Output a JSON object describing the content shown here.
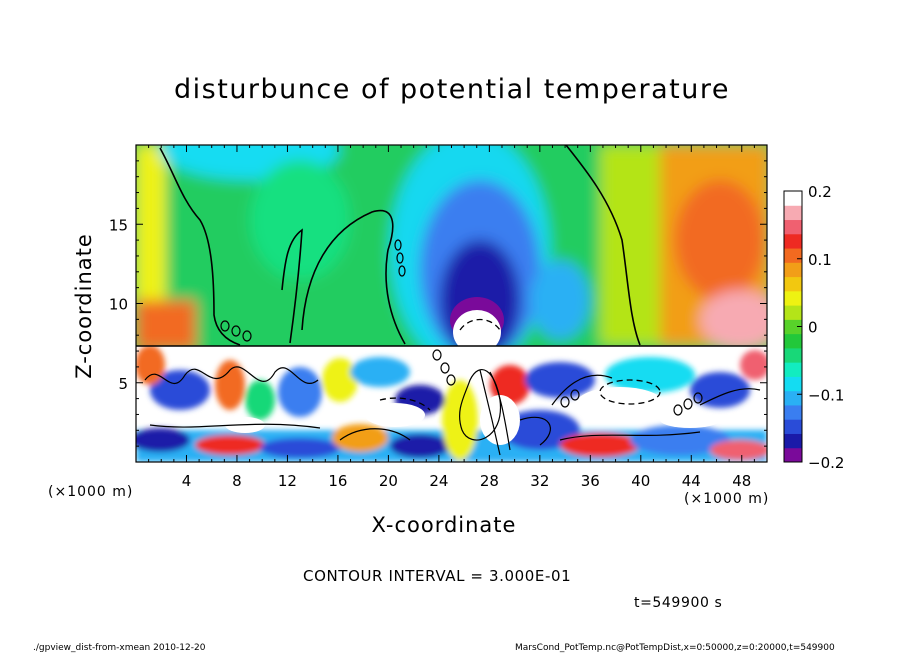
{
  "chart_data": {
    "type": "heatmap",
    "title": "disturbunce of potential temperature",
    "xlabel": "X-coordinate",
    "ylabel": "Z-coordinate",
    "x_unit": "(×1000 m)",
    "x_unit_right": "(×1000 m)",
    "x_ticks": [
      4,
      8,
      12,
      16,
      20,
      24,
      28,
      32,
      36,
      40,
      44,
      48
    ],
    "y_ticks": [
      5,
      10,
      15
    ],
    "xlim": [
      0,
      50
    ],
    "ylim": [
      0,
      20
    ],
    "colorbar": {
      "ticks": [
        0.2,
        0.1,
        0,
        -0.1,
        -0.2
      ],
      "tick_labels": [
        "0.2",
        "0.1",
        "0",
        "−0.1",
        "−0.2"
      ],
      "range": [
        -0.2,
        0.2
      ],
      "colors": [
        "#7a0a9a",
        "#1a1aa8",
        "#2a4cd8",
        "#3a7ef0",
        "#2ab0f4",
        "#14dcf2",
        "#12ecc0",
        "#18d878",
        "#22c83a",
        "#58d22a",
        "#b4e418",
        "#eef212",
        "#f2c810",
        "#f29e18",
        "#f26a20",
        "#ee2a22",
        "#f06070",
        "#f7aab2",
        "#ffffff"
      ]
    },
    "contour_interval": "CONTOUR INTERVAL = 3.000E-01",
    "time_label": "t=549900 s"
  },
  "footer": {
    "left": "./gpview_dist-from-xmean  2010-12-20",
    "right": "MarsCond_PotTemp.nc@PotTempDist,x=0:50000,z=0:20000,t=549900"
  }
}
